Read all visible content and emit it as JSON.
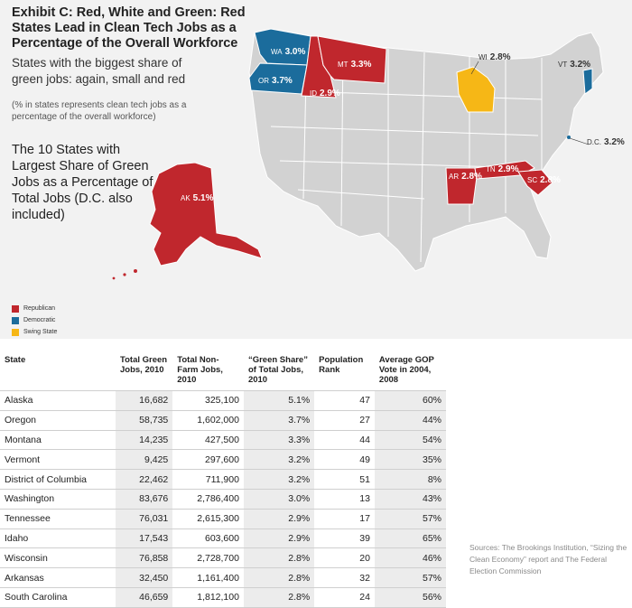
{
  "title": "Exhibit C: Red, White and Green: Red States Lead in Clean Tech Jobs as a Percentage of the Overall Workforce",
  "subtitle": "States with the biggest share of green jobs: again, small and red",
  "note": "(% in states represents clean tech jobs as a percentage of the overall workforce)",
  "map_heading": "The 10 States with Largest Share of Green Jobs as a Percentage of Total Jobs (D.C. also included)",
  "colors": {
    "republican": "#c0272d",
    "democratic": "#1b6c9c",
    "swing": "#f6b716",
    "base_state": "#d2d2d2",
    "background": "#f2f2f2"
  },
  "legend": [
    {
      "label": "Republican",
      "color": "#c0272d"
    },
    {
      "label": "Democratic",
      "color": "#1b6c9c"
    },
    {
      "label": "Swing State",
      "color": "#f6b716"
    }
  ],
  "map_labels": [
    {
      "abbr": "WA",
      "pct": "3.0%"
    },
    {
      "abbr": "OR",
      "pct": "3.7%"
    },
    {
      "abbr": "ID",
      "pct": "2.9%"
    },
    {
      "abbr": "MT",
      "pct": "3.3%"
    },
    {
      "abbr": "WI",
      "pct": "2.8%"
    },
    {
      "abbr": "VT",
      "pct": "3.2%"
    },
    {
      "abbr": "D.C.",
      "pct": "3.2%"
    },
    {
      "abbr": "AR",
      "pct": "2.8%"
    },
    {
      "abbr": "TN",
      "pct": "2.9%"
    },
    {
      "abbr": "SC",
      "pct": "2.8%"
    },
    {
      "abbr": "AK",
      "pct": "5.1%"
    }
  ],
  "chart_data": {
    "type": "table",
    "columns": [
      "State",
      "Total Green Jobs, 2010",
      "Total Non-Farm Jobs, 2010",
      "“Green Share” of Total Jobs, 2010",
      "Population Rank",
      "Average GOP Vote in 2004, 2008"
    ],
    "rows": [
      [
        "Alaska",
        "16,682",
        "325,100",
        "5.1%",
        "47",
        "60%"
      ],
      [
        "Oregon",
        "58,735",
        "1,602,000",
        "3.7%",
        "27",
        "44%"
      ],
      [
        "Montana",
        "14,235",
        "427,500",
        "3.3%",
        "44",
        "54%"
      ],
      [
        "Vermont",
        "9,425",
        "297,600",
        "3.2%",
        "49",
        "35%"
      ],
      [
        "District of Columbia",
        "22,462",
        "711,900",
        "3.2%",
        "51",
        "8%"
      ],
      [
        "Washington",
        "83,676",
        "2,786,400",
        "3.0%",
        "13",
        "43%"
      ],
      [
        "Tennessee",
        "76,031",
        "2,615,300",
        "2.9%",
        "17",
        "57%"
      ],
      [
        "Idaho",
        "17,543",
        "603,600",
        "2.9%",
        "39",
        "65%"
      ],
      [
        "Wisconsin",
        "76,858",
        "2,728,700",
        "2.8%",
        "20",
        "46%"
      ],
      [
        "Arkansas",
        "32,450",
        "1,161,400",
        "2.8%",
        "32",
        "57%"
      ],
      [
        "South Carolina",
        "46,659",
        "1,812,100",
        "2.8%",
        "24",
        "56%"
      ]
    ]
  },
  "sources": "Sources: The Brookings Institution, “Sizing the Clean Economy” report and The Federal Election Commission"
}
